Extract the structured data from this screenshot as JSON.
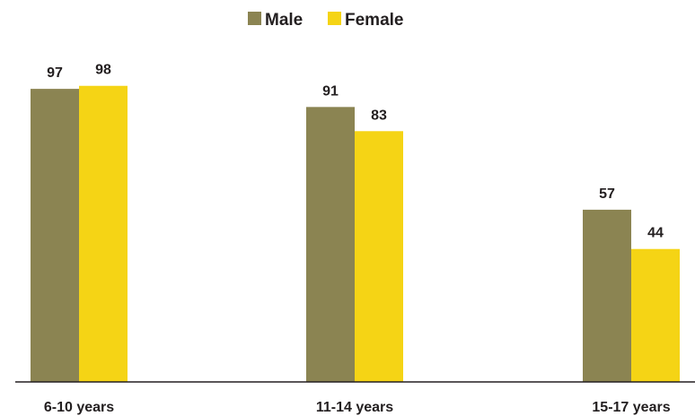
{
  "chart_data": {
    "type": "bar",
    "categories": [
      "6-10 years",
      "11-14 years",
      "15-17 years"
    ],
    "series": [
      {
        "name": "Male",
        "values": [
          97,
          91,
          57
        ],
        "color": "#8b8452"
      },
      {
        "name": "Female",
        "values": [
          98,
          83,
          44
        ],
        "color": "#f5d415"
      }
    ],
    "ylim": [
      0,
      100
    ],
    "legend_position": "top-center",
    "grid": false,
    "data_labels": true
  }
}
